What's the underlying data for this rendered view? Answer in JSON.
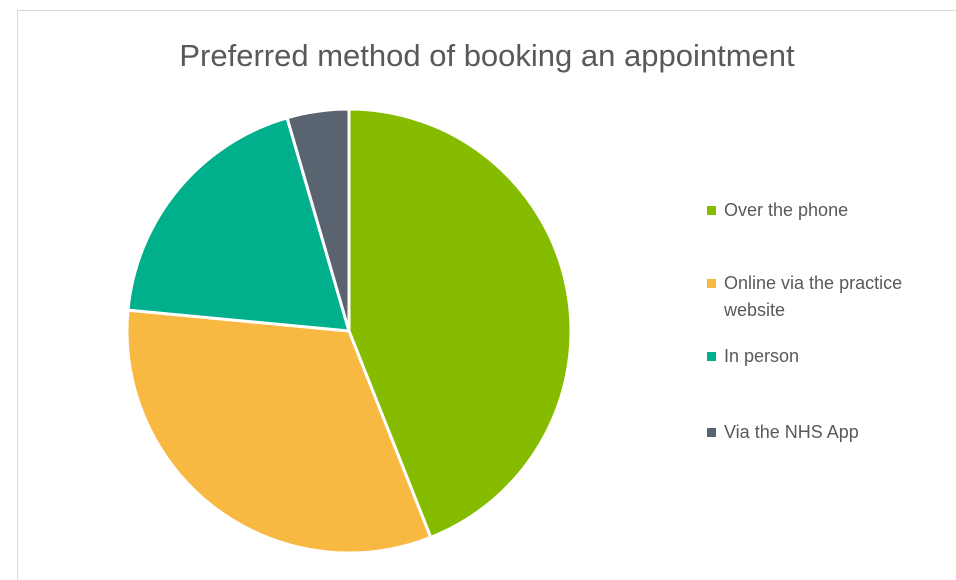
{
  "chart_data": {
    "type": "pie",
    "title": "Preferred method of booking an appointment",
    "categories": [
      "Over the phone",
      "Online via the practice website",
      "In person",
      "Via the NHS App"
    ],
    "values": [
      44,
      32.5,
      19,
      4.5
    ],
    "colors": [
      "#86bc00",
      "#f8b942",
      "#00b08c",
      "#5a6470"
    ],
    "legend": "right"
  }
}
